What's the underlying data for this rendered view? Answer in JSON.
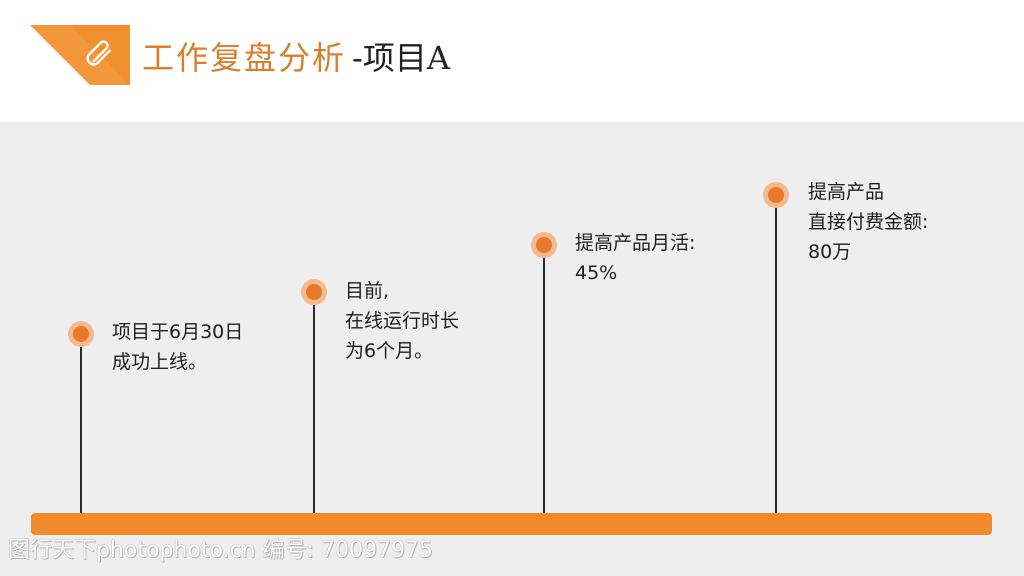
{
  "header": {
    "title": "工作复盘分析",
    "subtitle": "-项目A"
  },
  "milestones": [
    {
      "lines": [
        "项目于6月30日",
        "成功上线。"
      ]
    },
    {
      "lines": [
        "目前,",
        "在线运行时长",
        "为6个月。"
      ]
    },
    {
      "lines": [
        "提高产品月活:",
        "45%"
      ]
    },
    {
      "lines": [
        "提高产品",
        "直接付费金额:",
        "80万"
      ]
    }
  ],
  "watermark": "图行天下photophoto.cn 编号: 70097975",
  "colors": {
    "accent": "#e9782a",
    "bar": "#f08a2a",
    "title": "#d9802e",
    "panel": "#eeeeee"
  },
  "icons": {
    "corner": "paperclip-icon",
    "milestone": "milestone-dot-icon"
  }
}
